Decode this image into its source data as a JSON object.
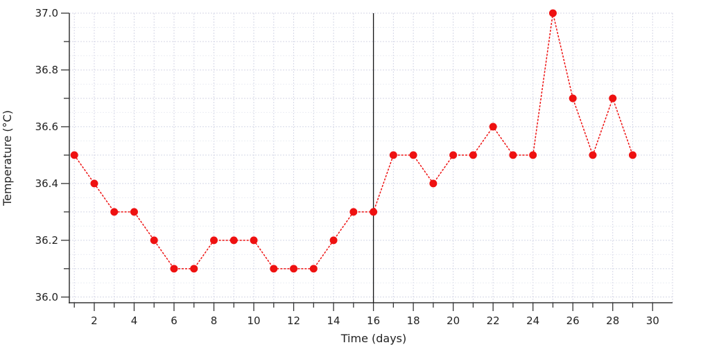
{
  "chart_data": {
    "type": "line",
    "title": "",
    "xlabel": "Time (days)",
    "ylabel": "Temperature (°C)",
    "xlim": [
      0.75,
      31
    ],
    "ylim": [
      35.98,
      37.0
    ],
    "x_ticks": [
      2,
      4,
      6,
      8,
      10,
      12,
      14,
      16,
      18,
      20,
      22,
      24,
      26,
      28,
      30
    ],
    "y_ticks": [
      "36.0",
      "36.2",
      "36.4",
      "36.6",
      "36.8",
      "37.0"
    ],
    "grid": true,
    "marker_line_x": 16,
    "series": [
      {
        "name": "Temperature",
        "color": "#ee1111",
        "x": [
          1,
          2,
          3,
          4,
          5,
          6,
          7,
          8,
          9,
          10,
          11,
          12,
          13,
          14,
          15,
          16,
          17,
          18,
          19,
          20,
          21,
          22,
          23,
          24,
          25,
          26,
          27,
          28,
          29
        ],
        "values": [
          36.5,
          36.4,
          36.3,
          36.3,
          36.2,
          36.1,
          36.1,
          36.2,
          36.2,
          36.2,
          36.1,
          36.1,
          36.1,
          36.2,
          36.3,
          36.3,
          36.5,
          36.5,
          36.4,
          36.5,
          36.5,
          36.6,
          36.5,
          36.5,
          37.0,
          36.7,
          36.5,
          36.7,
          36.5
        ]
      }
    ]
  }
}
